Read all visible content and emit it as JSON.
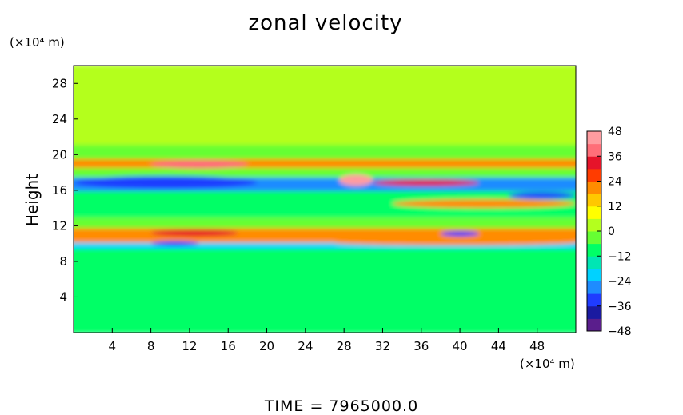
{
  "chart_data": {
    "type": "heatmap",
    "title": "zonal velocity",
    "ylabel": "Height",
    "xunit": "(×10⁴ m)",
    "yunit": "(×10⁴ m)",
    "footer": "TIME = 7965000.0",
    "xlim": [
      0,
      52
    ],
    "ylim": [
      0,
      30
    ],
    "xticks": [
      4,
      8,
      12,
      16,
      20,
      24,
      28,
      32,
      36,
      40,
      44,
      48
    ],
    "yticks": [
      4,
      8,
      12,
      16,
      20,
      24,
      28
    ],
    "colorbar": {
      "ticks": [
        48,
        36,
        24,
        12,
        0,
        -12,
        -24,
        -36,
        -48
      ],
      "range": [
        -48,
        48
      ],
      "colors": [
        "#5a1e8c",
        "#1a1aa0",
        "#1f3cff",
        "#1e8cff",
        "#00d2ff",
        "#00e6b4",
        "#00ff66",
        "#66ff33",
        "#b4ff1e",
        "#ffff00",
        "#ffc800",
        "#ff8c00",
        "#ff3c00",
        "#e6142a",
        "#ff6e78",
        "#ff9ca0"
      ]
    },
    "bands": [
      {
        "y0": 0,
        "y1": 9.5,
        "value": -8
      },
      {
        "y0": 9.5,
        "y1": 10.2,
        "value": -20
      },
      {
        "y0": 10.2,
        "y1": 11.8,
        "value": 20
      },
      {
        "y0": 11.8,
        "y1": 13,
        "value": -4
      },
      {
        "y0": 13,
        "y1": 16,
        "value": -10
      },
      {
        "y0": 16,
        "y1": 17.5,
        "value": -28
      },
      {
        "y0": 17.5,
        "y1": 18.6,
        "value": -6
      },
      {
        "y0": 18.6,
        "y1": 19.6,
        "value": 22
      },
      {
        "y0": 19.6,
        "y1": 21.2,
        "value": -6
      },
      {
        "y0": 21.2,
        "y1": 30,
        "value": 3
      }
    ],
    "features": [
      {
        "x0": 8,
        "x1": 18,
        "y0": 18.4,
        "y1": 19.4,
        "value": 36
      },
      {
        "x0": 0,
        "x1": 19,
        "y0": 16.2,
        "y1": 17.6,
        "value": -36
      },
      {
        "x0": 8,
        "x1": 17,
        "y0": 10.8,
        "y1": 11.6,
        "value": 34
      },
      {
        "x0": 8,
        "x1": 13,
        "y0": 9.8,
        "y1": 10.2,
        "value": -36
      },
      {
        "x0": 27.5,
        "x1": 31,
        "y0": 16.5,
        "y1": 17.8,
        "value": 44
      },
      {
        "x0": 31,
        "x1": 42,
        "y0": 16.5,
        "y1": 17.2,
        "value": 32
      },
      {
        "x0": 38,
        "x1": 42,
        "y0": 10.8,
        "y1": 11.4,
        "value": -32
      },
      {
        "x0": 45,
        "x1": 52,
        "y0": 15,
        "y1": 15.8,
        "value": -34
      },
      {
        "x0": 27,
        "x1": 52,
        "y0": 9.8,
        "y1": 10.4,
        "value": 20
      },
      {
        "x0": 33,
        "x1": 52,
        "y0": 14,
        "y1": 15,
        "value": 18
      }
    ]
  }
}
